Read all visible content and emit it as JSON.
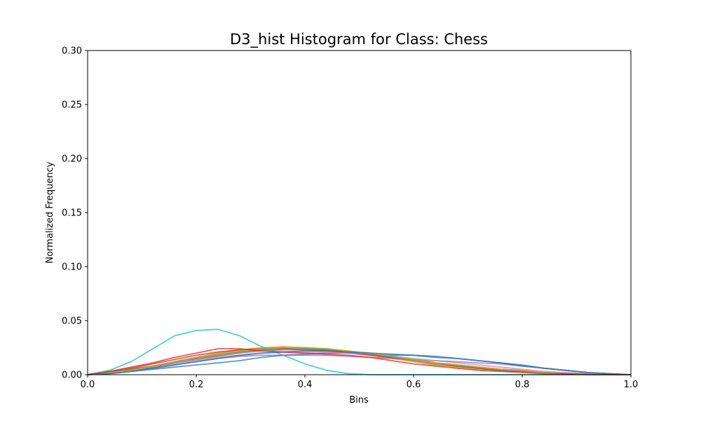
{
  "chart_data": {
    "type": "line",
    "title": "D3_hist Histogram for Class: Chess",
    "xlabel": "Bins",
    "ylabel": "Normalized Frequency",
    "xlim": [
      0.0,
      1.0
    ],
    "ylim": [
      0.0,
      0.3
    ],
    "xticks": [
      "0.0",
      "0.2",
      "0.4",
      "0.6",
      "0.8",
      "1.0"
    ],
    "yticks": [
      "0.00",
      "0.05",
      "0.10",
      "0.15",
      "0.20",
      "0.25",
      "0.30"
    ],
    "grid": false,
    "x": [
      0.0,
      0.04,
      0.08,
      0.12,
      0.16,
      0.2,
      0.24,
      0.28,
      0.32,
      0.36,
      0.4,
      0.44,
      0.48,
      0.52,
      0.56,
      0.6,
      0.64,
      0.68,
      0.72,
      0.76,
      0.8,
      0.84,
      0.88,
      0.92,
      0.96,
      1.0
    ],
    "series": [
      {
        "color": "#1f77b4",
        "values": [
          0.0,
          0.001,
          0.003,
          0.005,
          0.007,
          0.009,
          0.011,
          0.013,
          0.016,
          0.018,
          0.019,
          0.02,
          0.02,
          0.019,
          0.018,
          0.018,
          0.016,
          0.015,
          0.013,
          0.011,
          0.009,
          0.006,
          0.004,
          0.002,
          0.001,
          0.0
        ]
      },
      {
        "color": "#ff7f0e",
        "values": [
          0.0,
          0.002,
          0.005,
          0.008,
          0.012,
          0.016,
          0.02,
          0.023,
          0.025,
          0.026,
          0.025,
          0.023,
          0.021,
          0.018,
          0.015,
          0.012,
          0.009,
          0.007,
          0.005,
          0.004,
          0.003,
          0.002,
          0.001,
          0.001,
          0.0,
          0.0
        ]
      },
      {
        "color": "#2ca02c",
        "values": [
          0.0,
          0.002,
          0.004,
          0.008,
          0.012,
          0.016,
          0.019,
          0.022,
          0.024,
          0.025,
          0.025,
          0.024,
          0.022,
          0.019,
          0.016,
          0.013,
          0.01,
          0.008,
          0.006,
          0.004,
          0.003,
          0.002,
          0.001,
          0.001,
          0.0,
          0.0
        ]
      },
      {
        "color": "#d62728",
        "values": [
          0.0,
          0.003,
          0.006,
          0.01,
          0.014,
          0.018,
          0.021,
          0.023,
          0.024,
          0.024,
          0.023,
          0.022,
          0.02,
          0.018,
          0.016,
          0.014,
          0.011,
          0.009,
          0.007,
          0.005,
          0.004,
          0.002,
          0.001,
          0.001,
          0.0,
          0.0
        ]
      },
      {
        "color": "#9467bd",
        "values": [
          0.0,
          0.001,
          0.003,
          0.006,
          0.009,
          0.012,
          0.015,
          0.017,
          0.018,
          0.018,
          0.018,
          0.018,
          0.017,
          0.016,
          0.015,
          0.014,
          0.013,
          0.012,
          0.011,
          0.01,
          0.008,
          0.006,
          0.004,
          0.002,
          0.001,
          0.0
        ]
      },
      {
        "color": "#8c564b",
        "values": [
          0.0,
          0.002,
          0.005,
          0.008,
          0.012,
          0.015,
          0.018,
          0.021,
          0.023,
          0.024,
          0.024,
          0.023,
          0.021,
          0.019,
          0.017,
          0.014,
          0.011,
          0.008,
          0.006,
          0.004,
          0.003,
          0.002,
          0.001,
          0.0,
          0.0,
          0.0
        ]
      },
      {
        "color": "#e377c2",
        "values": [
          0.0,
          0.001,
          0.004,
          0.007,
          0.01,
          0.013,
          0.016,
          0.018,
          0.02,
          0.021,
          0.021,
          0.021,
          0.02,
          0.019,
          0.017,
          0.015,
          0.013,
          0.011,
          0.009,
          0.007,
          0.005,
          0.003,
          0.002,
          0.001,
          0.0,
          0.0
        ]
      },
      {
        "color": "#7f7f7f",
        "values": [
          0.0,
          0.002,
          0.004,
          0.007,
          0.011,
          0.014,
          0.017,
          0.02,
          0.022,
          0.023,
          0.023,
          0.022,
          0.021,
          0.019,
          0.017,
          0.014,
          0.011,
          0.009,
          0.007,
          0.005,
          0.003,
          0.002,
          0.001,
          0.001,
          0.0,
          0.0
        ]
      },
      {
        "color": "#bcbd22",
        "values": [
          0.0,
          0.002,
          0.004,
          0.008,
          0.012,
          0.016,
          0.019,
          0.022,
          0.024,
          0.025,
          0.025,
          0.024,
          0.022,
          0.02,
          0.017,
          0.014,
          0.011,
          0.009,
          0.007,
          0.005,
          0.004,
          0.002,
          0.001,
          0.001,
          0.0,
          0.0
        ]
      },
      {
        "color": "#17becf",
        "values": [
          0.0,
          0.004,
          0.012,
          0.024,
          0.036,
          0.041,
          0.042,
          0.036,
          0.026,
          0.018,
          0.01,
          0.004,
          0.001,
          0.0,
          0.0,
          0.0,
          0.0,
          0.0,
          0.0,
          0.0,
          0.0,
          0.0,
          0.0,
          0.0,
          0.0,
          0.0
        ]
      },
      {
        "color": "#1f77b4",
        "values": [
          0.0,
          0.001,
          0.003,
          0.006,
          0.009,
          0.012,
          0.015,
          0.018,
          0.02,
          0.021,
          0.022,
          0.022,
          0.021,
          0.02,
          0.019,
          0.018,
          0.017,
          0.015,
          0.013,
          0.011,
          0.008,
          0.006,
          0.004,
          0.002,
          0.001,
          0.0
        ]
      },
      {
        "color": "#d62728",
        "values": [
          0.0,
          0.003,
          0.007,
          0.011,
          0.016,
          0.02,
          0.024,
          0.024,
          0.022,
          0.021,
          0.02,
          0.019,
          0.018,
          0.016,
          0.013,
          0.01,
          0.008,
          0.006,
          0.004,
          0.003,
          0.002,
          0.001,
          0.001,
          0.0,
          0.0,
          0.0
        ]
      }
    ]
  }
}
